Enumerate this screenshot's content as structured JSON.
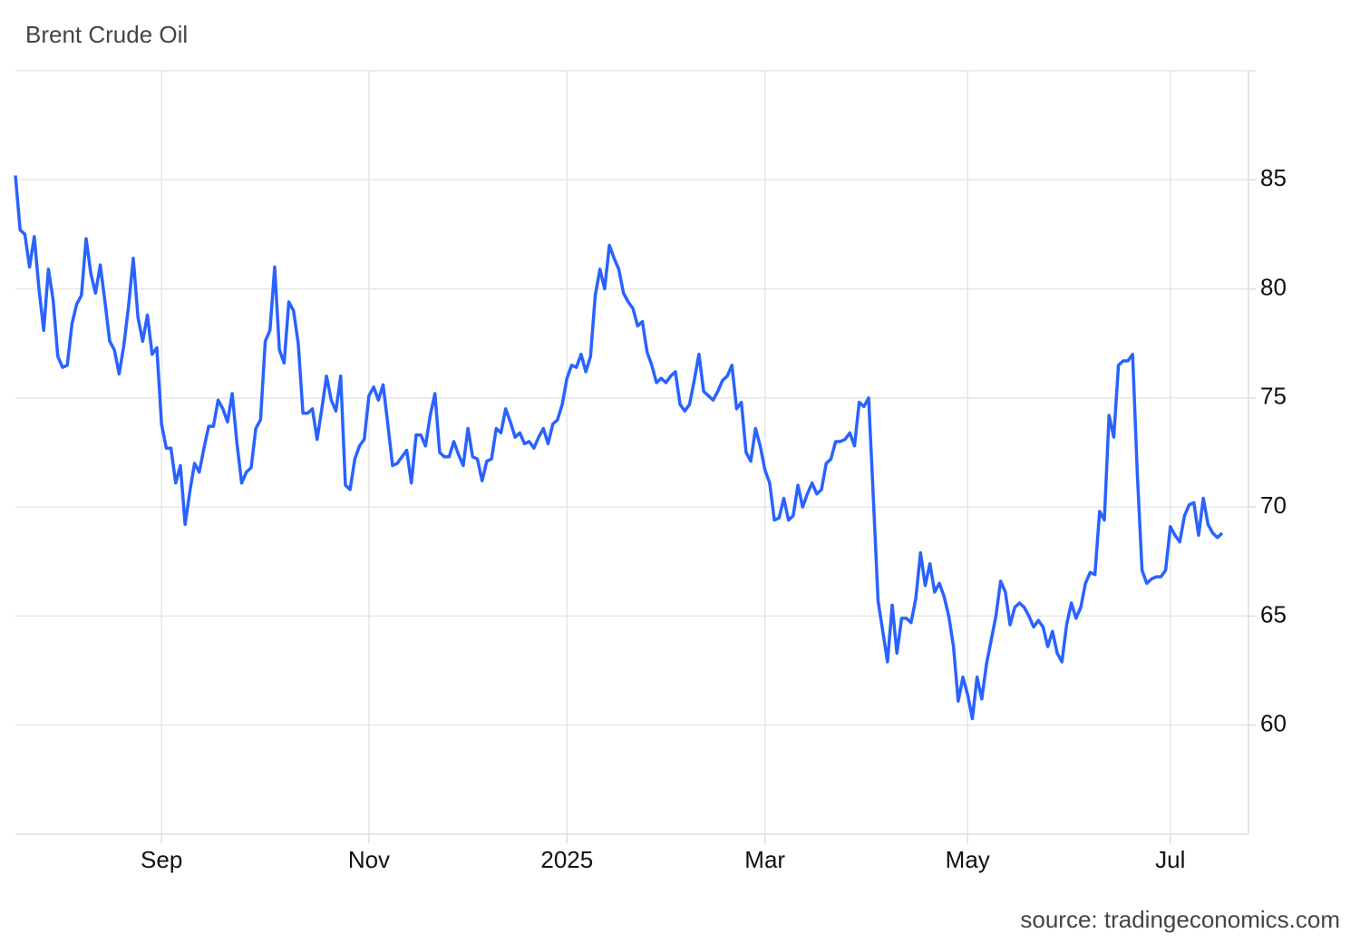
{
  "chart_data": {
    "type": "line",
    "title": "Brent Crude Oil",
    "source": "source: tradingeconomics.com",
    "categories": [
      null,
      null,
      null,
      null,
      null,
      null,
      null,
      null,
      null,
      null,
      null,
      null,
      null,
      null,
      null,
      null,
      null,
      null,
      null,
      null,
      null,
      null,
      null,
      null,
      null,
      null,
      null,
      null,
      null,
      null,
      null,
      "Sep",
      null,
      null,
      null,
      null,
      null,
      null,
      null,
      null,
      null,
      null,
      null,
      null,
      null,
      null,
      null,
      null,
      null,
      null,
      null,
      null,
      null,
      null,
      null,
      null,
      null,
      null,
      null,
      null,
      null,
      null,
      null,
      null,
      null,
      null,
      null,
      null,
      null,
      null,
      null,
      null,
      null,
      null,
      null,
      "Nov",
      null,
      null,
      null,
      null,
      null,
      null,
      null,
      null,
      null,
      null,
      null,
      null,
      null,
      null,
      null,
      null,
      null,
      null,
      null,
      null,
      null,
      null,
      null,
      null,
      null,
      null,
      null,
      null,
      null,
      null,
      null,
      null,
      null,
      null,
      null,
      null,
      null,
      null,
      null,
      null,
      null,
      "2025",
      null,
      null,
      null,
      null,
      null,
      null,
      null,
      null,
      null,
      null,
      null,
      null,
      null,
      null,
      null,
      null,
      null,
      null,
      null,
      null,
      null,
      null,
      null,
      null,
      null,
      null,
      null,
      null,
      null,
      null,
      null,
      null,
      null,
      null,
      null,
      null,
      null,
      null,
      null,
      null,
      null,
      "Mar",
      null,
      null,
      null,
      null,
      null,
      null,
      null,
      null,
      null,
      null,
      null,
      null,
      null,
      null,
      null,
      null,
      null,
      null,
      null,
      null,
      null,
      null,
      null,
      null,
      null,
      null,
      null,
      null,
      null,
      null,
      null,
      null,
      null,
      null,
      null,
      null,
      null,
      null,
      null,
      null,
      null,
      null,
      "May",
      null,
      null,
      null,
      null,
      null,
      null,
      null,
      null,
      null,
      null,
      null,
      null,
      null,
      null,
      null,
      null,
      null,
      null,
      null,
      null,
      null,
      null,
      null,
      null,
      null,
      null,
      null,
      null,
      null,
      null,
      null,
      null,
      null,
      null,
      null,
      null,
      null,
      null,
      null,
      null,
      null,
      null,
      "Jul",
      null,
      null,
      null,
      null,
      null,
      null,
      null,
      null,
      null,
      null,
      null
    ],
    "series": [
      {
        "color": "#2962ff",
        "values": [
          85.2,
          82.7,
          82.5,
          81.0,
          82.4,
          80.0,
          78.1,
          80.9,
          79.5,
          76.9,
          76.4,
          76.5,
          78.4,
          79.3,
          79.7,
          82.3,
          80.7,
          79.8,
          81.1,
          79.4,
          77.6,
          77.2,
          76.1,
          77.4,
          79.2,
          81.4,
          78.7,
          77.6,
          78.8,
          77.0,
          77.3,
          73.8,
          72.7,
          72.7,
          71.1,
          71.9,
          69.2,
          70.7,
          72.0,
          71.6,
          72.7,
          73.7,
          73.7,
          74.9,
          74.5,
          73.9,
          75.2,
          72.9,
          71.1,
          71.6,
          71.8,
          73.6,
          74.0,
          77.6,
          78.1,
          81.0,
          77.2,
          76.6,
          79.4,
          79.0,
          77.5,
          74.3,
          74.3,
          74.5,
          73.1,
          74.5,
          76.0,
          74.9,
          74.4,
          76.0,
          71.0,
          70.8,
          72.2,
          72.8,
          73.1,
          75.1,
          75.5,
          74.9,
          75.6,
          73.8,
          71.9,
          72.0,
          72.3,
          72.6,
          71.1,
          73.3,
          73.3,
          72.8,
          74.2,
          75.2,
          72.5,
          72.3,
          72.3,
          73.0,
          72.4,
          71.9,
          73.6,
          72.3,
          72.2,
          71.2,
          72.1,
          72.2,
          73.6,
          73.4,
          74.5,
          73.9,
          73.2,
          73.4,
          72.9,
          73.0,
          72.7,
          73.2,
          73.6,
          72.9,
          73.8,
          74.0,
          74.7,
          75.9,
          76.5,
          76.4,
          77.0,
          76.2,
          76.9,
          79.7,
          80.9,
          80.0,
          82.0,
          81.4,
          80.9,
          79.8,
          79.4,
          79.1,
          78.3,
          78.5,
          77.1,
          76.5,
          75.7,
          75.9,
          75.7,
          76.0,
          76.2,
          74.7,
          74.4,
          74.7,
          75.8,
          77.0,
          75.3,
          75.1,
          74.9,
          75.3,
          75.8,
          76.0,
          76.5,
          74.5,
          74.8,
          72.5,
          72.1,
          73.6,
          72.8,
          71.7,
          71.1,
          69.4,
          69.5,
          70.4,
          69.4,
          69.6,
          71.0,
          70.0,
          70.6,
          71.1,
          70.6,
          70.8,
          72.0,
          72.2,
          73.0,
          73.0,
          73.1,
          73.4,
          72.8,
          74.8,
          74.6,
          75.0,
          70.4,
          65.7,
          64.3,
          62.9,
          65.5,
          63.3,
          64.9,
          64.9,
          64.7,
          65.8,
          67.9,
          66.4,
          67.4,
          66.1,
          66.5,
          65.9,
          65.0,
          63.6,
          61.1,
          62.2,
          61.4,
          60.3,
          62.2,
          61.2,
          62.8,
          63.9,
          65.0,
          66.6,
          66.1,
          64.6,
          65.4,
          65.6,
          65.4,
          65.0,
          64.5,
          64.8,
          64.5,
          63.6,
          64.3,
          63.3,
          62.9,
          64.6,
          65.6,
          64.9,
          65.4,
          66.5,
          67.0,
          66.9,
          69.8,
          69.4,
          74.2,
          73.2,
          76.5,
          76.7,
          76.7,
          77.0,
          71.5,
          67.1,
          66.5,
          66.7,
          66.8,
          66.8,
          67.1,
          69.1,
          68.7,
          68.4,
          69.6,
          70.1,
          70.2,
          68.7,
          70.4,
          69.2,
          68.8,
          68.6,
          68.8
        ]
      }
    ],
    "ylim": [
      55,
      90
    ],
    "yticks": [
      60,
      65,
      70,
      75,
      80,
      85
    ],
    "grid": true
  }
}
